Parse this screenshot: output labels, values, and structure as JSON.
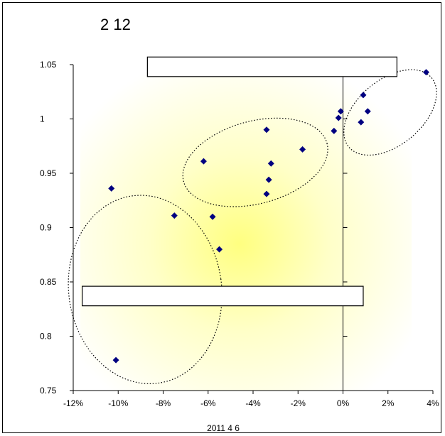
{
  "chart_data": {
    "type": "scatter",
    "title": "2 12",
    "xlabel": "2011 4 6",
    "ylabel": "",
    "xlim": [
      -0.12,
      0.04
    ],
    "ylim": [
      0.75,
      1.05
    ],
    "x_ticks": [
      -0.12,
      -0.1,
      -0.08,
      -0.06,
      -0.04,
      -0.02,
      0.0,
      0.02,
      0.04
    ],
    "x_tick_labels": [
      "-12%",
      "-10%",
      "-8%",
      "-6%",
      "-4%",
      "-2%",
      "0%",
      "2%",
      "4%"
    ],
    "y_ticks": [
      0.75,
      0.8,
      0.85,
      0.9,
      0.95,
      1.0,
      1.05
    ],
    "y_tick_labels": [
      "0.75",
      "0.8",
      "0.85",
      "0.9",
      "0.95",
      "1",
      "1.05"
    ],
    "grid": false,
    "background": "radial yellow gradient",
    "marker_color": "#000080",
    "x": [
      0.037,
      0.009,
      0.011,
      0.008,
      -0.001,
      -0.002,
      -0.004,
      -0.018,
      -0.034,
      -0.032,
      -0.033,
      -0.034,
      -0.062,
      -0.058,
      -0.075,
      -0.055,
      -0.103,
      -0.101
    ],
    "y": [
      1.043,
      1.022,
      1.007,
      0.997,
      1.007,
      1.001,
      0.989,
      0.972,
      0.99,
      0.959,
      0.944,
      0.931,
      0.961,
      0.91,
      0.911,
      0.88,
      0.936,
      0.778
    ],
    "groups": [
      {
        "cx": 0.021,
        "cy": 1.006,
        "rx": 0.024,
        "ry": 0.03,
        "rotate": -40
      },
      {
        "cx": -0.039,
        "cy": 0.96,
        "rx": 0.033,
        "ry": 0.038,
        "rotate": -15
      },
      {
        "cx": -0.088,
        "cy": 0.843,
        "rx": 0.034,
        "ry": 0.087,
        "rotate": -8
      }
    ],
    "label_boxes": [
      {
        "x0": -0.087,
        "x1": 0.024,
        "y0": 1.057,
        "y1": 1.039,
        "text": ""
      },
      {
        "x0": -0.116,
        "x1": 0.009,
        "y0": 0.846,
        "y1": 0.828,
        "text": ""
      }
    ]
  }
}
